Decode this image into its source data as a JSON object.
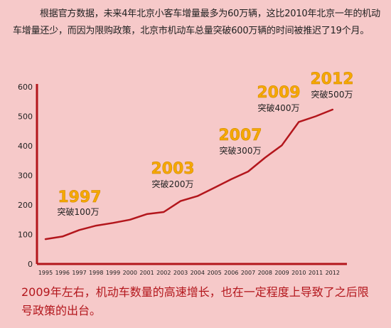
{
  "intro_text": "根据官方数据，未来4年北京小客车增量最多为60万辆，这比2010年北京一年的机动车增量还少，而因为限购政策，北京市机动车总量突破600万辆的时间被推迟了19个月。",
  "outro_text": "2009年左右，机动车数量的高速增长，也在一定程度上导致了之后限号政策的出台。",
  "colors": {
    "line": "#b3161c",
    "year_label": "#f6a800",
    "text": "#222222",
    "background": "#f6c9c9"
  },
  "chart_data": {
    "type": "line",
    "x": [
      "1995",
      "1996",
      "1997",
      "1998",
      "1999",
      "2000",
      "2001",
      "2002",
      "2003",
      "2004",
      "2005",
      "2006",
      "2007",
      "2008",
      "2009",
      "2010",
      "2011",
      "2012"
    ],
    "series": [
      {
        "values": [
          84,
          93,
          115,
          130,
          139,
          150,
          169,
          176,
          213,
          230,
          258,
          287,
          313,
          360,
          402,
          481,
          500,
          523
        ]
      }
    ],
    "ylim": [
      0,
      600
    ],
    "yticks": [
      "0",
      "100",
      "200",
      "300",
      "400",
      "500",
      "600"
    ],
    "grid": false,
    "annotations": [
      {
        "year": "1997",
        "text": "突破100万"
      },
      {
        "year": "2003",
        "text": "突破200万"
      },
      {
        "year": "2007",
        "text": "突破300万"
      },
      {
        "year": "2009",
        "text": "突破400万"
      },
      {
        "year": "2012",
        "text": "突破500万"
      }
    ]
  }
}
